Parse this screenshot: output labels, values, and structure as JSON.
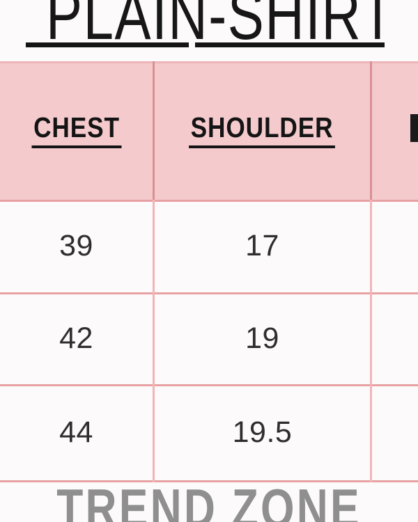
{
  "title": {
    "left": "PLAIN-",
    "right": "SHIRT"
  },
  "chart_data": {
    "type": "table",
    "title": "PLAIN-SHIRT",
    "columns": [
      "CHEST",
      "SHOULDER"
    ],
    "third_column_visible": "partial (clipped at right edge, only left stroke of first letter visible)",
    "rows": [
      [
        "39",
        "17"
      ],
      [
        "42",
        "19"
      ],
      [
        "44",
        "19.5"
      ]
    ],
    "footer_brand": "TREND ZONE"
  },
  "footer": {
    "brand": "TREND ZONE"
  },
  "colors": {
    "background": "#fcfafa",
    "header_fill": "#f4cacd",
    "grid_line": "#e8a1a3",
    "header_grid_line": "#d89093",
    "body_grid_line": "#f0b6b8",
    "title_text": "#171717",
    "header_text": "#141414",
    "value_text": "#2e2e2e",
    "brand_text": "#8f8f8f"
  }
}
